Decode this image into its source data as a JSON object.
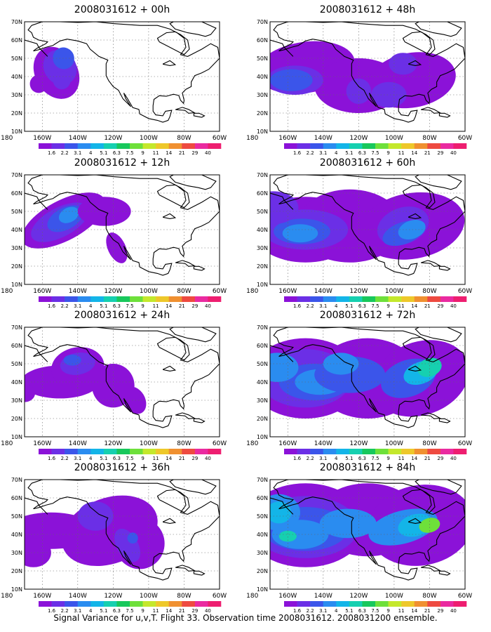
{
  "footer": "Signal Variance for u,v,T. Flight 33. Observation time 2008031612. 2008031200 ensemble.",
  "colorbar": {
    "labels": [
      "1.6",
      "2.2",
      "3.1",
      "4",
      "5.1",
      "6.3",
      "7.5",
      "9",
      "11",
      "14",
      "21",
      "29",
      "40"
    ],
    "colors": [
      "#8b12d8",
      "#6b2fe6",
      "#3b55ea",
      "#2a8cf0",
      "#13b5e8",
      "#16d0b0",
      "#18c85c",
      "#6ee03a",
      "#c4e82c",
      "#eec82a",
      "#f09030",
      "#ee4a40",
      "#ea2aa0",
      "#ee1e70"
    ]
  },
  "map": {
    "lat_labels": [
      "70N",
      "60N",
      "50N",
      "40N",
      "30N",
      "20N",
      "10N"
    ],
    "lon_labels": [
      "180",
      "160W",
      "140W",
      "120W",
      "100W",
      "80W",
      "60W"
    ]
  },
  "panels": [
    {
      "id": "p00",
      "title": "2008031612 + 00h"
    },
    {
      "id": "p48",
      "title": "2008031612 + 48h"
    },
    {
      "id": "p12",
      "title": "2008031612 + 12h"
    },
    {
      "id": "p60",
      "title": "2008031612 + 60h"
    },
    {
      "id": "p24",
      "title": "2008031612 + 24h"
    },
    {
      "id": "p72",
      "title": "2008031612 + 72h"
    },
    {
      "id": "p36",
      "title": "2008031612 + 36h"
    },
    {
      "id": "p84",
      "title": "2008031612 + 84h"
    }
  ],
  "chart_data": {
    "type": "heatmap",
    "x_axis": {
      "ticks": [
        "180",
        "160W",
        "140W",
        "120W",
        "100W",
        "80W",
        "60W"
      ],
      "range": [
        170,
        60
      ]
    },
    "y_axis": {
      "ticks": [
        "70N",
        "60N",
        "50N",
        "40N",
        "30N",
        "20N",
        "10N"
      ],
      "range": [
        10,
        70
      ]
    },
    "grid": true,
    "levels": [
      1.6,
      2.2,
      3.1,
      4,
      5.1,
      6.3,
      7.5,
      9,
      11,
      14,
      21,
      29,
      40
    ],
    "lead_times_h": [
      0,
      12,
      24,
      36,
      48,
      60,
      72,
      84
    ]
  }
}
